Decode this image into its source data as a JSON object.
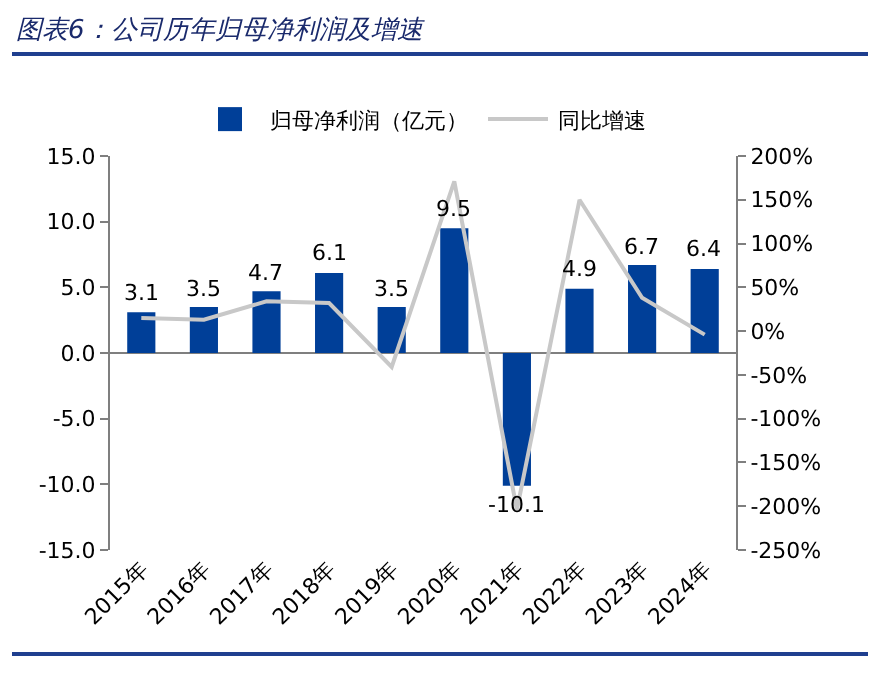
{
  "chart_data": {
    "type": "bar",
    "title": "图表6：公司历年归母净利润及增速",
    "categories": [
      "2015年",
      "2016年",
      "2017年",
      "2018年",
      "2019年",
      "2020年",
      "2021年",
      "2022年",
      "2023年",
      "2024年"
    ],
    "series": [
      {
        "name": "归母净利润（亿元）",
        "color": "#003f98",
        "values": [
          3.1,
          3.5,
          4.7,
          6.1,
          3.5,
          9.5,
          -10.1,
          4.9,
          6.7,
          6.4
        ],
        "value_labels": [
          "3.1",
          "3.5",
          "4.7",
          "6.1",
          "3.5",
          "9.5",
          "-10.1",
          "4.9",
          "6.7",
          "6.4"
        ]
      },
      {
        "name": "同比增速",
        "type": "line",
        "axis": "y2",
        "color": "#c8c8c8",
        "values": [
          15,
          13,
          34,
          32,
          -41,
          171,
          -204,
          150,
          38,
          -4
        ]
      }
    ],
    "ylim": [
      -15,
      15
    ],
    "yticks": [
      {
        "value": -15,
        "label": "-15.0"
      },
      {
        "value": -10,
        "label": "-10.0"
      },
      {
        "value": -5,
        "label": "-5.0"
      },
      {
        "value": 0,
        "label": "0.0"
      },
      {
        "value": 5,
        "label": "5.0"
      },
      {
        "value": 10,
        "label": "10.0"
      },
      {
        "value": 15,
        "label": "15.0"
      }
    ],
    "y2lim": [
      -250,
      200
    ],
    "y2ticks": [
      {
        "value": -250,
        "label": "-250%"
      },
      {
        "value": -200,
        "label": "-200%"
      },
      {
        "value": -150,
        "label": "-150%"
      },
      {
        "value": -100,
        "label": "-100%"
      },
      {
        "value": -50,
        "label": "-50%"
      },
      {
        "value": 0,
        "label": "0%"
      },
      {
        "value": 50,
        "label": "50%"
      },
      {
        "value": 100,
        "label": "100%"
      },
      {
        "value": 150,
        "label": "150%"
      },
      {
        "value": 200,
        "label": "200%"
      }
    ],
    "legend": "top"
  }
}
